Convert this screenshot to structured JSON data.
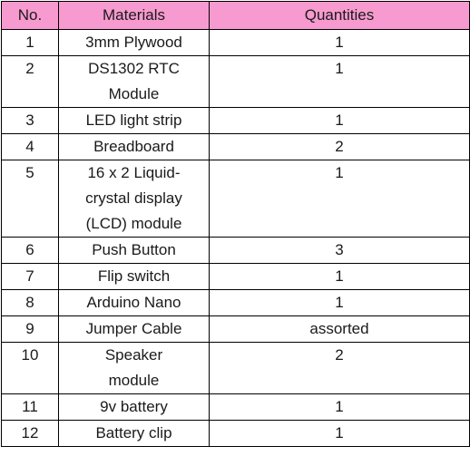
{
  "table": {
    "headers": [
      "No.",
      "Materials",
      "Quantities"
    ],
    "header_bg": "#f79ad0",
    "rows": [
      {
        "no": "1",
        "material": "3mm Plywood",
        "qty": "1"
      },
      {
        "no": "2",
        "material": "DS1302 RTC Module",
        "qty": "1"
      },
      {
        "no": "3",
        "material": "LED light strip",
        "qty": "1"
      },
      {
        "no": "4",
        "material": "Breadboard",
        "qty": "2"
      },
      {
        "no": "5",
        "material": "16 x 2 Liquid-crystal display (LCD) module",
        "qty": "1"
      },
      {
        "no": "6",
        "material": "Push Button",
        "qty": "3"
      },
      {
        "no": "7",
        "material": "Flip switch",
        "qty": "1"
      },
      {
        "no": "8",
        "material": "Arduino Nano",
        "qty": "1"
      },
      {
        "no": "9",
        "material": "Jumper Cable",
        "qty": "assorted"
      },
      {
        "no": "10",
        "material": "Speaker module",
        "qty": "2"
      },
      {
        "no": "11",
        "material": "9v battery",
        "qty": "1"
      },
      {
        "no": "12",
        "material": "Battery clip",
        "qty": "1"
      }
    ]
  }
}
